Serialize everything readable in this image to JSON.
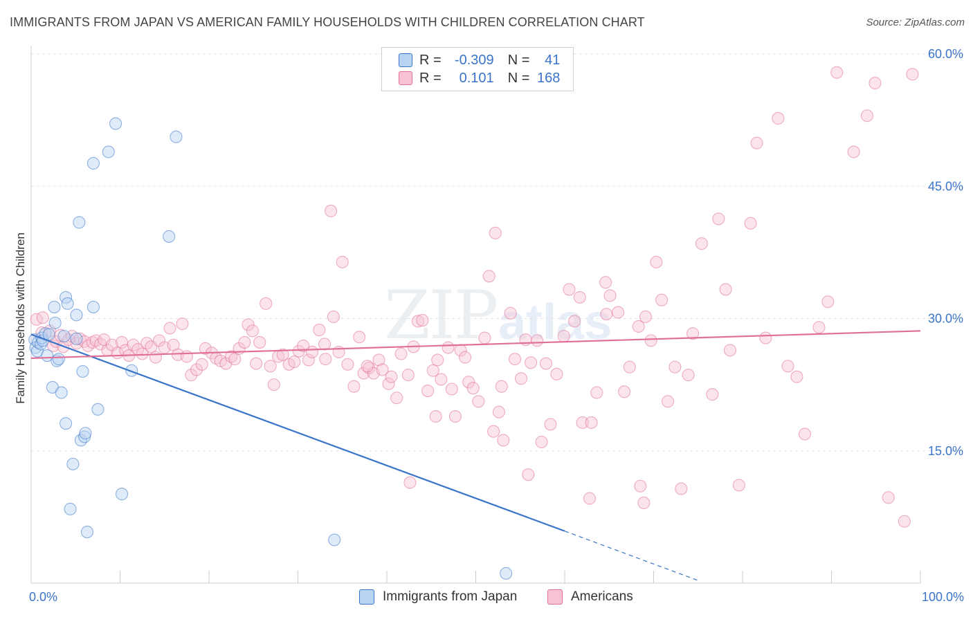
{
  "title": "IMMIGRANTS FROM JAPAN VS AMERICAN FAMILY HOUSEHOLDS WITH CHILDREN CORRELATION CHART",
  "source": "Source: ZipAtlas.com",
  "watermark": {
    "zip": "ZIP",
    "atlas": "atlas"
  },
  "colors": {
    "blue": "#3a74c8",
    "blue_fill": "#b9d3f2",
    "pink": "#e07098",
    "pink_fill": "#f7c3d3",
    "grid": "#e3e3e3"
  },
  "legend": {
    "rows": [
      {
        "r_label": "R =",
        "r_value": "-0.309",
        "n_label": "N =",
        "n_value": "41"
      },
      {
        "r_label": "R =",
        "r_value": "0.101",
        "n_label": "N =",
        "n_value": "168"
      }
    ]
  },
  "bottom_legend": [
    "Immigrants from Japan",
    "Americans"
  ],
  "chart_data": {
    "type": "scatter",
    "title": "IMMIGRANTS FROM JAPAN VS AMERICAN FAMILY HOUSEHOLDS WITH CHILDREN CORRELATION CHART",
    "xlabel": "",
    "ylabel": "Family Households with Children",
    "xlim": [
      0,
      100
    ],
    "ylim": [
      0,
      60
    ],
    "x_tick_labels": [
      "0.0%",
      "100.0%"
    ],
    "y_tick_labels": [
      "15.0%",
      "30.0%",
      "45.0%",
      "60.0%"
    ],
    "y_ticks": [
      15,
      30,
      45,
      60
    ],
    "grid": true,
    "legend_position": "top-center",
    "series": [
      {
        "name": "Immigrants from Japan",
        "color": "#3a74c8",
        "R": -0.309,
        "N": 41,
        "trend": {
          "x0": 0.0,
          "y0": 28.2,
          "x1": 60.0,
          "y1": 5.9,
          "dashed_to_x": 75.0,
          "dashed_to_y": 0.3
        },
        "points": [
          [
            0.4,
            27.6
          ],
          [
            0.5,
            26.7
          ],
          [
            0.7,
            26.3
          ],
          [
            0.8,
            27.3
          ],
          [
            1.1,
            27.1
          ],
          [
            1.2,
            27.8
          ],
          [
            1.3,
            27.5
          ],
          [
            1.6,
            28.3
          ],
          [
            1.8,
            25.8
          ],
          [
            2.0,
            28.2
          ],
          [
            2.4,
            22.2
          ],
          [
            2.6,
            31.3
          ],
          [
            2.7,
            29.5
          ],
          [
            2.9,
            25.2
          ],
          [
            3.1,
            25.4
          ],
          [
            3.4,
            21.6
          ],
          [
            3.7,
            28.0
          ],
          [
            3.9,
            32.4
          ],
          [
            3.9,
            18.1
          ],
          [
            4.1,
            31.7
          ],
          [
            4.4,
            8.4
          ],
          [
            4.7,
            13.5
          ],
          [
            5.1,
            30.4
          ],
          [
            5.1,
            27.7
          ],
          [
            5.6,
            16.2
          ],
          [
            5.8,
            24.0
          ],
          [
            6.0,
            16.6
          ],
          [
            6.1,
            17.0
          ],
          [
            6.3,
            5.8
          ],
          [
            7.0,
            47.6
          ],
          [
            7.5,
            19.7
          ],
          [
            8.7,
            48.9
          ],
          [
            9.5,
            52.1
          ],
          [
            10.2,
            10.1
          ],
          [
            11.3,
            24.1
          ],
          [
            15.5,
            39.3
          ],
          [
            16.3,
            50.6
          ],
          [
            34.1,
            4.9
          ],
          [
            53.4,
            1.1
          ],
          [
            5.4,
            40.9
          ],
          [
            7.0,
            31.3
          ]
        ]
      },
      {
        "name": "Americans",
        "color": "#e07098",
        "R": 0.101,
        "N": 168,
        "trend": {
          "x0": 0.0,
          "y0": 25.5,
          "x1": 100.0,
          "y1": 28.6
        },
        "points": [
          [
            0.6,
            29.9
          ],
          [
            1.2,
            28.4
          ],
          [
            1.3,
            30.1
          ],
          [
            2.1,
            28.6
          ],
          [
            2.5,
            26.9
          ],
          [
            2.8,
            27.4
          ],
          [
            3.3,
            28.1
          ],
          [
            3.6,
            26.8
          ],
          [
            4.2,
            27.6
          ],
          [
            4.6,
            28.0
          ],
          [
            5.1,
            27.2
          ],
          [
            5.5,
            27.7
          ],
          [
            6.0,
            27.4
          ],
          [
            6.4,
            26.9
          ],
          [
            6.9,
            27.3
          ],
          [
            7.3,
            27.5
          ],
          [
            7.8,
            27.1
          ],
          [
            8.2,
            27.6
          ],
          [
            8.6,
            26.4
          ],
          [
            9.1,
            27.0
          ],
          [
            9.7,
            26.1
          ],
          [
            10.2,
            27.3
          ],
          [
            10.6,
            26.4
          ],
          [
            11.0,
            25.8
          ],
          [
            11.5,
            27.0
          ],
          [
            12.0,
            26.5
          ],
          [
            12.5,
            26.0
          ],
          [
            13.0,
            27.2
          ],
          [
            13.5,
            26.8
          ],
          [
            14.0,
            25.6
          ],
          [
            14.4,
            27.5
          ],
          [
            15.0,
            26.7
          ],
          [
            15.6,
            28.9
          ],
          [
            16.0,
            27.0
          ],
          [
            16.5,
            25.9
          ],
          [
            17.0,
            29.4
          ],
          [
            17.5,
            25.7
          ],
          [
            18.0,
            23.6
          ],
          [
            18.6,
            24.2
          ],
          [
            19.2,
            24.8
          ],
          [
            19.6,
            26.6
          ],
          [
            20.3,
            26.1
          ],
          [
            20.8,
            25.5
          ],
          [
            21.3,
            25.2
          ],
          [
            21.9,
            24.9
          ],
          [
            22.5,
            25.7
          ],
          [
            22.9,
            25.4
          ],
          [
            23.4,
            26.6
          ],
          [
            24.0,
            27.3
          ],
          [
            24.4,
            29.3
          ],
          [
            24.9,
            28.6
          ],
          [
            25.3,
            24.9
          ],
          [
            25.7,
            27.3
          ],
          [
            26.4,
            31.7
          ],
          [
            26.9,
            24.6
          ],
          [
            27.3,
            22.5
          ],
          [
            27.8,
            25.7
          ],
          [
            28.3,
            25.9
          ],
          [
            29.0,
            24.8
          ],
          [
            29.6,
            25.1
          ],
          [
            30.1,
            26.3
          ],
          [
            30.6,
            26.9
          ],
          [
            31.2,
            25.3
          ],
          [
            31.6,
            26.2
          ],
          [
            32.4,
            28.7
          ],
          [
            33.1,
            25.4
          ],
          [
            33.7,
            42.2
          ],
          [
            34.0,
            30.2
          ],
          [
            34.6,
            26.2
          ],
          [
            35.0,
            36.4
          ],
          [
            35.6,
            24.8
          ],
          [
            36.3,
            22.3
          ],
          [
            36.9,
            27.9
          ],
          [
            37.4,
            23.8
          ],
          [
            38.0,
            24.4
          ],
          [
            38.5,
            23.8
          ],
          [
            39.1,
            25.3
          ],
          [
            39.5,
            24.2
          ],
          [
            40.2,
            22.6
          ],
          [
            41.1,
            21.0
          ],
          [
            41.6,
            26.0
          ],
          [
            42.4,
            23.6
          ],
          [
            43.0,
            26.8
          ],
          [
            43.5,
            29.7
          ],
          [
            44.0,
            29.8
          ],
          [
            44.6,
            21.8
          ],
          [
            45.2,
            24.1
          ],
          [
            45.7,
            25.3
          ],
          [
            46.1,
            23.1
          ],
          [
            46.9,
            26.7
          ],
          [
            47.3,
            22.0
          ],
          [
            47.7,
            18.9
          ],
          [
            48.3,
            26.4
          ],
          [
            48.8,
            25.6
          ],
          [
            49.2,
            22.8
          ],
          [
            49.7,
            22.1
          ],
          [
            50.3,
            20.6
          ],
          [
            51.0,
            27.8
          ],
          [
            51.5,
            34.8
          ],
          [
            52.0,
            17.2
          ],
          [
            52.6,
            19.4
          ],
          [
            53.1,
            16.2
          ],
          [
            53.9,
            30.6
          ],
          [
            54.4,
            25.4
          ],
          [
            55.1,
            23.2
          ],
          [
            55.6,
            27.6
          ],
          [
            56.2,
            25.0
          ],
          [
            56.9,
            27.5
          ],
          [
            57.4,
            16.0
          ],
          [
            57.9,
            24.9
          ],
          [
            58.4,
            18.0
          ],
          [
            59.1,
            23.7
          ],
          [
            59.9,
            28.0
          ],
          [
            60.5,
            33.3
          ],
          [
            61.1,
            29.7
          ],
          [
            61.7,
            32.4
          ],
          [
            62.0,
            18.2
          ],
          [
            63.0,
            18.2
          ],
          [
            63.6,
            21.6
          ],
          [
            64.6,
            34.1
          ],
          [
            65.1,
            32.6
          ],
          [
            66.0,
            30.7
          ],
          [
            66.7,
            21.7
          ],
          [
            67.3,
            24.5
          ],
          [
            68.3,
            29.1
          ],
          [
            69.1,
            30.2
          ],
          [
            69.7,
            27.5
          ],
          [
            70.3,
            36.4
          ],
          [
            70.9,
            32.1
          ],
          [
            71.6,
            20.6
          ],
          [
            72.4,
            24.5
          ],
          [
            73.1,
            10.7
          ],
          [
            73.9,
            23.6
          ],
          [
            74.4,
            28.3
          ],
          [
            75.4,
            38.5
          ],
          [
            76.6,
            21.4
          ],
          [
            77.3,
            41.3
          ],
          [
            78.1,
            33.3
          ],
          [
            78.6,
            26.4
          ],
          [
            79.6,
            11.1
          ],
          [
            80.9,
            40.8
          ],
          [
            81.6,
            49.9
          ],
          [
            82.6,
            27.8
          ],
          [
            84.0,
            52.7
          ],
          [
            85.1,
            24.6
          ],
          [
            86.1,
            23.4
          ],
          [
            87.0,
            16.9
          ],
          [
            88.6,
            29.0
          ],
          [
            89.6,
            31.9
          ],
          [
            90.6,
            57.9
          ],
          [
            92.5,
            48.9
          ],
          [
            94.0,
            53.0
          ],
          [
            94.9,
            56.7
          ],
          [
            96.4,
            9.7
          ],
          [
            98.2,
            7.0
          ],
          [
            99.1,
            57.7
          ],
          [
            42.6,
            11.4
          ],
          [
            52.2,
            39.7
          ],
          [
            55.9,
            12.3
          ],
          [
            62.8,
            9.6
          ],
          [
            68.9,
            9.1
          ],
          [
            68.5,
            11.0
          ],
          [
            52.9,
            22.3
          ],
          [
            64.7,
            30.5
          ],
          [
            45.5,
            18.9
          ],
          [
            40.5,
            23.4
          ],
          [
            37.8,
            24.6
          ],
          [
            33.0,
            27.1
          ]
        ]
      }
    ]
  }
}
